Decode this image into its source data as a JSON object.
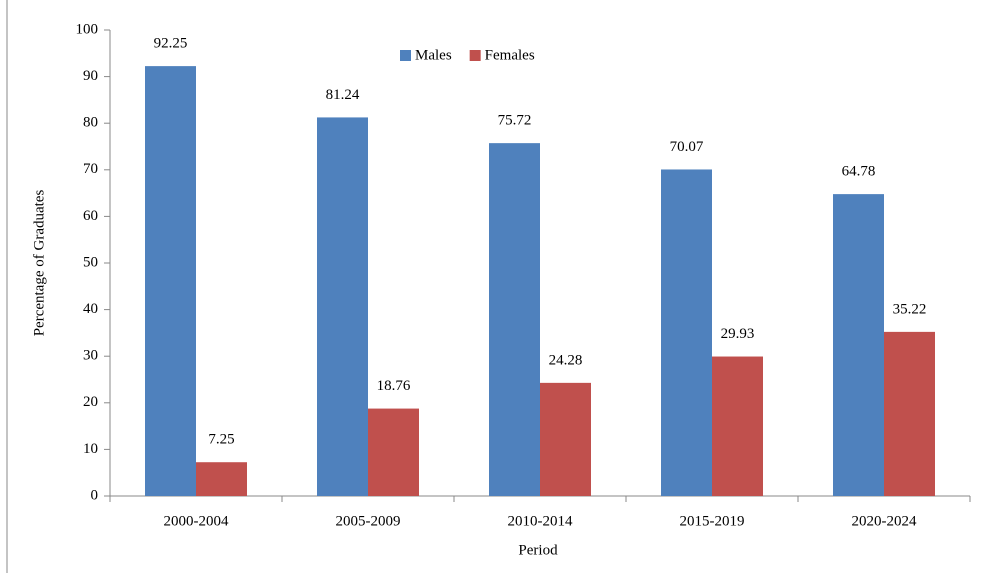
{
  "chart_data": {
    "type": "bar",
    "categories": [
      "2000-2004",
      "2005-2009",
      "2010-2014",
      "2015-2019",
      "2020-2024"
    ],
    "series": [
      {
        "name": "Males",
        "color": "#4f81bd",
        "values": [
          92.25,
          81.24,
          75.72,
          70.07,
          64.78
        ]
      },
      {
        "name": "Females",
        "color": "#c0504d",
        "values": [
          7.25,
          18.76,
          24.28,
          29.93,
          35.22
        ]
      }
    ],
    "ylabel": "Percentage of Graduates",
    "xlabel": "Period",
    "ylim": [
      0,
      100
    ],
    "yticks": [
      0,
      10,
      20,
      30,
      40,
      50,
      60,
      70,
      80,
      90,
      100
    ],
    "legend": "top"
  }
}
